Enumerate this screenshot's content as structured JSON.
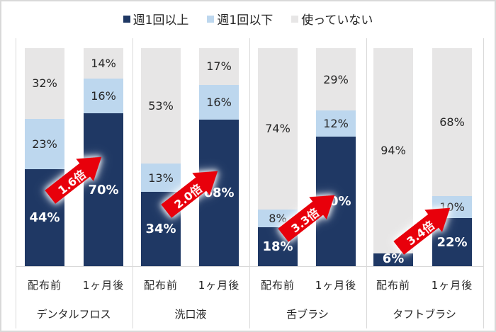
{
  "legend": [
    {
      "label": "週1回以上",
      "color": "#1f3864"
    },
    {
      "label": "週1回以下",
      "color": "#bdd7ee"
    },
    {
      "label": "使っていない",
      "color": "#e7e6e6"
    }
  ],
  "groups": [
    {
      "label": "デンタルフロス",
      "multiplier": "1.6倍",
      "bars": [
        {
          "label": "配布前",
          "values": [
            44,
            23,
            32
          ],
          "texts": [
            "44%",
            "23%",
            "32%"
          ]
        },
        {
          "label": "1ヶ月後",
          "values": [
            70,
            16,
            14
          ],
          "texts": [
            "70%",
            "16%",
            "14%"
          ]
        }
      ]
    },
    {
      "label": "洗口液",
      "multiplier": "2.0倍",
      "bars": [
        {
          "label": "配布前",
          "values": [
            34,
            13,
            53
          ],
          "texts": [
            "34%",
            "13%",
            "53%"
          ]
        },
        {
          "label": "1ヶ月後",
          "values": [
            68,
            16,
            17
          ],
          "texts": [
            "68%",
            "16%",
            "17%"
          ]
        }
      ]
    },
    {
      "label": "舌ブラシ",
      "multiplier": "3.3倍",
      "bars": [
        {
          "label": "配布前",
          "values": [
            18,
            8,
            74
          ],
          "texts": [
            "18%",
            "8%",
            "74%"
          ]
        },
        {
          "label": "1ヶ月後",
          "values": [
            60,
            12,
            29
          ],
          "texts": [
            "60%",
            "12%",
            "29%"
          ]
        }
      ]
    },
    {
      "label": "タフトブラシ",
      "multiplier": "3.4倍",
      "bars": [
        {
          "label": "配布前",
          "values": [
            6,
            0,
            94
          ],
          "texts": [
            "6%",
            "",
            "94%"
          ]
        },
        {
          "label": "1ヶ月後",
          "values": [
            22,
            10,
            68
          ],
          "texts": [
            "22%",
            "10%",
            "68%"
          ]
        }
      ]
    }
  ],
  "chart_data": {
    "type": "bar",
    "stacked": true,
    "percent": true,
    "title": "",
    "xlabel": "",
    "ylabel": "",
    "ylim": [
      0,
      100
    ],
    "grid": false,
    "legend_position": "top",
    "categories": [
      "デンタルフロス 配布前",
      "デンタルフロス 1ヶ月後",
      "洗口液 配布前",
      "洗口液 1ヶ月後",
      "舌ブラシ 配布前",
      "舌ブラシ 1ヶ月後",
      "タフトブラシ 配布前",
      "タフトブラシ 1ヶ月後"
    ],
    "series": [
      {
        "name": "週1回以上",
        "color": "#1f3864",
        "values": [
          44,
          70,
          34,
          68,
          18,
          60,
          6,
          22
        ]
      },
      {
        "name": "週1回以下",
        "color": "#bdd7ee",
        "values": [
          23,
          16,
          13,
          16,
          8,
          12,
          0,
          10
        ]
      },
      {
        "name": "使っていない",
        "color": "#e7e6e6",
        "values": [
          32,
          14,
          53,
          17,
          74,
          29,
          94,
          68
        ]
      }
    ],
    "annotations": [
      {
        "group": "デンタルフロス",
        "text": "1.6倍"
      },
      {
        "group": "洗口液",
        "text": "2.0倍"
      },
      {
        "group": "舌ブラシ",
        "text": "3.3倍"
      },
      {
        "group": "タフトブラシ",
        "text": "3.4倍"
      }
    ]
  }
}
